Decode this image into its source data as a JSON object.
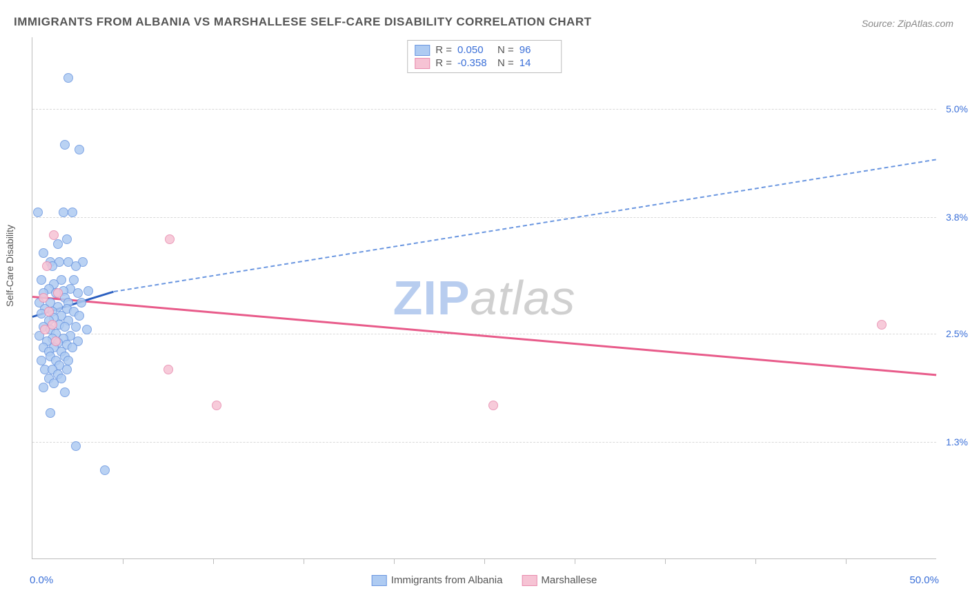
{
  "title": "IMMIGRANTS FROM ALBANIA VS MARSHALLESE SELF-CARE DISABILITY CORRELATION CHART",
  "source": "Source: ZipAtlas.com",
  "ylabel": "Self-Care Disability",
  "watermark": {
    "prefix": "ZIP",
    "suffix": "atlas"
  },
  "chart": {
    "type": "scatter",
    "background_color": "#ffffff",
    "grid_color": "#d8d8d8",
    "axis_color": "#bcbcbc",
    "xlim": [
      0.0,
      50.0
    ],
    "ylim": [
      0.0,
      5.8
    ],
    "y_gridlines": [
      1.3,
      2.5,
      3.8,
      5.0
    ],
    "y_tick_labels": [
      "1.3%",
      "2.5%",
      "3.8%",
      "5.0%"
    ],
    "x_ticks": [
      5,
      10,
      15,
      20,
      25,
      30,
      35,
      40,
      45
    ],
    "x_axis_left_label": "0.0%",
    "x_axis_right_label": "50.0%",
    "series": [
      {
        "name": "Immigrants from Albania",
        "fill": "#aecbf2",
        "stroke": "#6a96e0",
        "marker_size": 14,
        "R": "0.050",
        "N": "96",
        "trend_dashed_color": "#6a96e0",
        "trend_solid_color": "#2b5fc0",
        "trend_solid": {
          "x1": 0.0,
          "y1": 2.7,
          "x2": 4.5,
          "y2": 2.98
        },
        "trend_dashed": {
          "x1": 4.5,
          "y1": 2.98,
          "x2": 50.0,
          "y2": 4.45
        },
        "points": [
          [
            2.0,
            5.35
          ],
          [
            1.8,
            4.6
          ],
          [
            2.6,
            4.55
          ],
          [
            0.3,
            3.85
          ],
          [
            1.7,
            3.85
          ],
          [
            2.2,
            3.85
          ],
          [
            1.9,
            3.55
          ],
          [
            1.4,
            3.5
          ],
          [
            0.6,
            3.4
          ],
          [
            1.0,
            3.3
          ],
          [
            2.0,
            3.3
          ],
          [
            2.8,
            3.3
          ],
          [
            1.5,
            3.3
          ],
          [
            2.4,
            3.25
          ],
          [
            1.1,
            3.25
          ],
          [
            0.5,
            3.1
          ],
          [
            1.6,
            3.1
          ],
          [
            2.3,
            3.1
          ],
          [
            1.2,
            3.05
          ],
          [
            0.9,
            3.0
          ],
          [
            2.1,
            3.0
          ],
          [
            1.7,
            2.98
          ],
          [
            3.1,
            2.98
          ],
          [
            0.6,
            2.95
          ],
          [
            1.3,
            2.95
          ],
          [
            2.5,
            2.95
          ],
          [
            1.8,
            2.9
          ],
          [
            1.0,
            2.85
          ],
          [
            0.4,
            2.85
          ],
          [
            2.0,
            2.85
          ],
          [
            2.7,
            2.85
          ],
          [
            1.4,
            2.8
          ],
          [
            0.7,
            2.78
          ],
          [
            1.9,
            2.78
          ],
          [
            1.1,
            2.75
          ],
          [
            2.3,
            2.75
          ],
          [
            0.5,
            2.72
          ],
          [
            1.6,
            2.7
          ],
          [
            2.6,
            2.7
          ],
          [
            1.2,
            2.68
          ],
          [
            0.9,
            2.65
          ],
          [
            2.0,
            2.65
          ],
          [
            1.5,
            2.6
          ],
          [
            0.6,
            2.58
          ],
          [
            1.8,
            2.58
          ],
          [
            2.4,
            2.58
          ],
          [
            1.0,
            2.55
          ],
          [
            3.0,
            2.55
          ],
          [
            1.3,
            2.5
          ],
          [
            0.4,
            2.48
          ],
          [
            2.1,
            2.48
          ],
          [
            1.7,
            2.45
          ],
          [
            1.1,
            2.45
          ],
          [
            0.8,
            2.42
          ],
          [
            2.5,
            2.42
          ],
          [
            1.4,
            2.4
          ],
          [
            1.9,
            2.38
          ],
          [
            0.6,
            2.35
          ],
          [
            1.2,
            2.35
          ],
          [
            2.2,
            2.35
          ],
          [
            1.6,
            2.3
          ],
          [
            0.9,
            2.3
          ],
          [
            1.0,
            2.25
          ],
          [
            1.8,
            2.25
          ],
          [
            0.5,
            2.2
          ],
          [
            1.3,
            2.2
          ],
          [
            2.0,
            2.2
          ],
          [
            1.5,
            2.15
          ],
          [
            0.7,
            2.1
          ],
          [
            1.1,
            2.1
          ],
          [
            1.9,
            2.1
          ],
          [
            1.4,
            2.05
          ],
          [
            0.9,
            2.0
          ],
          [
            1.6,
            2.0
          ],
          [
            1.2,
            1.95
          ],
          [
            0.6,
            1.9
          ],
          [
            1.8,
            1.85
          ],
          [
            1.0,
            1.62
          ],
          [
            2.4,
            1.25
          ],
          [
            4.0,
            0.98
          ]
        ]
      },
      {
        "name": "Marshallese",
        "fill": "#f6c3d4",
        "stroke": "#e88aad",
        "marker_size": 14,
        "R": "-0.358",
        "N": "14",
        "trend_solid_color": "#e85b8a",
        "trend_solid": {
          "x1": 0.0,
          "y1": 2.92,
          "x2": 50.0,
          "y2": 2.05
        },
        "points": [
          [
            1.2,
            3.6
          ],
          [
            0.8,
            3.25
          ],
          [
            0.6,
            2.9
          ],
          [
            1.4,
            2.95
          ],
          [
            0.9,
            2.75
          ],
          [
            1.1,
            2.6
          ],
          [
            0.7,
            2.55
          ],
          [
            1.3,
            2.42
          ],
          [
            7.6,
            3.55
          ],
          [
            7.5,
            2.1
          ],
          [
            10.2,
            1.7
          ],
          [
            25.5,
            1.7
          ],
          [
            47.0,
            2.6
          ]
        ]
      }
    ],
    "legend_top": {
      "r_label": "R =",
      "n_label": "N ="
    },
    "legend_bottom_items": [
      "Immigrants from Albania",
      "Marshallese"
    ]
  }
}
